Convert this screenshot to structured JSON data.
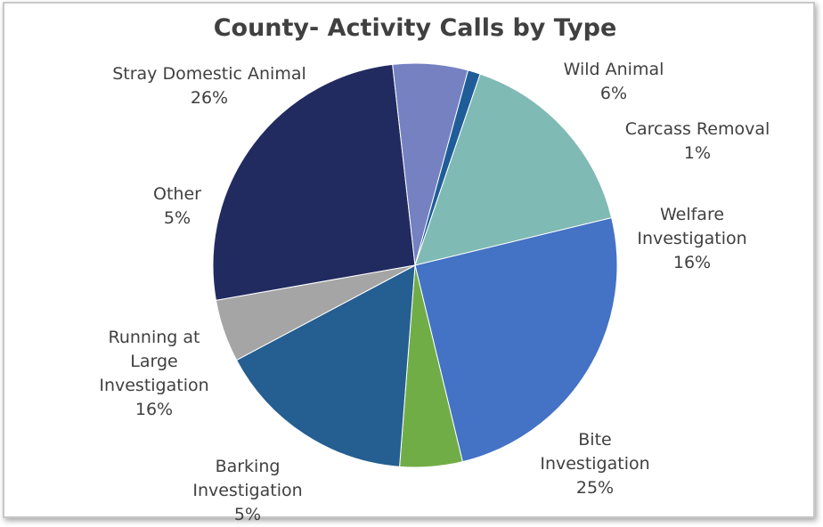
{
  "chart_data": {
    "type": "pie",
    "title": "County- Activity Calls by Type",
    "slices": [
      {
        "label_lines": [
          "Stray Domestic Animal"
        ],
        "percent_label": "26%",
        "value": 26,
        "color": "#212b60"
      },
      {
        "label_lines": [
          "Wild Animal"
        ],
        "percent_label": "6%",
        "value": 6,
        "color": "#7581c1"
      },
      {
        "label_lines": [
          "Carcass Removal"
        ],
        "percent_label": "1%",
        "value": 1,
        "color": "#1f5d99"
      },
      {
        "label_lines": [
          "Welfare",
          "Investigation"
        ],
        "percent_label": "16%",
        "value": 16,
        "color": "#7fbab4"
      },
      {
        "label_lines": [
          "Bite",
          "Investigation"
        ],
        "percent_label": "25%",
        "value": 25,
        "color": "#4472c4"
      },
      {
        "label_lines": [
          "Barking",
          "Investigation"
        ],
        "percent_label": "5%",
        "value": 5,
        "color": "#70ad47"
      },
      {
        "label_lines": [
          "Running at",
          "Large",
          "Investigation"
        ],
        "percent_label": "16%",
        "value": 16,
        "color": "#255e91"
      },
      {
        "label_lines": [
          "Other"
        ],
        "percent_label": "5%",
        "value": 5,
        "color": "#a5a5a5"
      }
    ],
    "legend": "none"
  }
}
